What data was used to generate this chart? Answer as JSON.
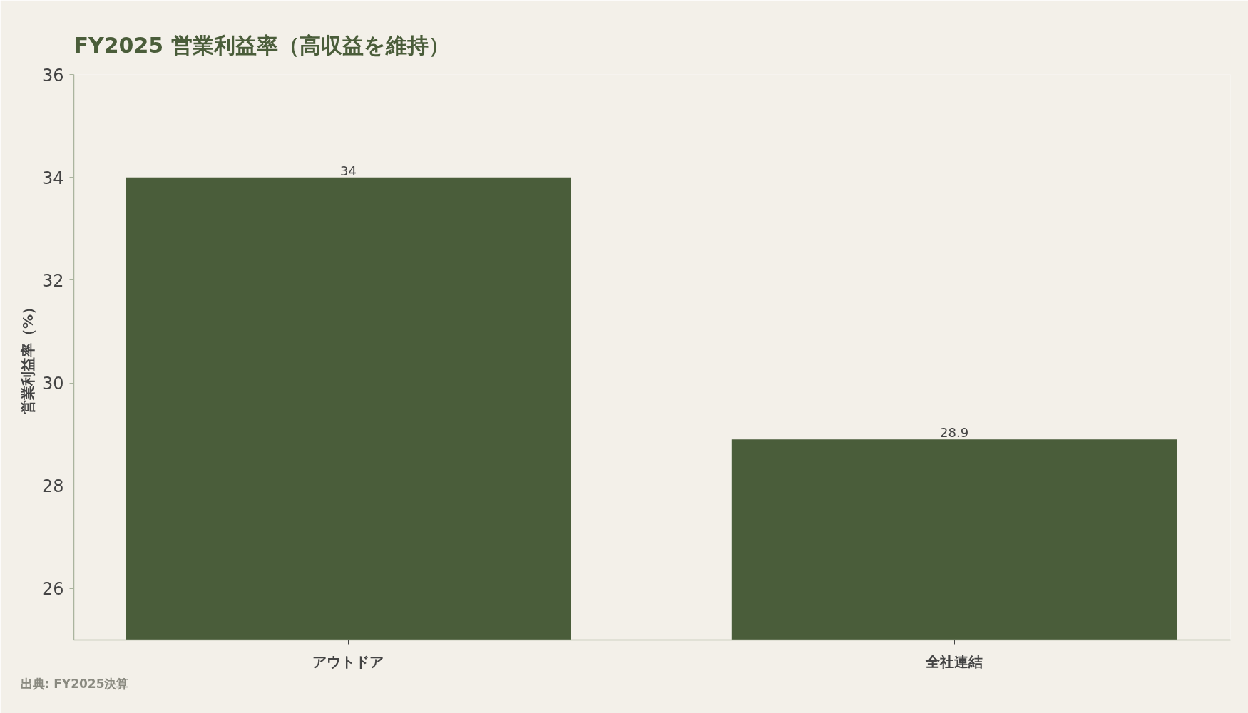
{
  "chart_data": {
    "type": "bar",
    "title": "FY2025 営業利益率（高収益を維持）",
    "ylabel": "営業利益率（%）",
    "categories": [
      "アウトドア",
      "全社連結"
    ],
    "values": [
      34,
      28.9
    ],
    "color": "#4a5d3a",
    "ylim": [
      25,
      36
    ],
    "yticks": [
      26,
      28,
      30,
      32,
      34,
      36
    ],
    "data_labels": true,
    "annotations": [
      "出典: FY2025決算"
    ]
  }
}
